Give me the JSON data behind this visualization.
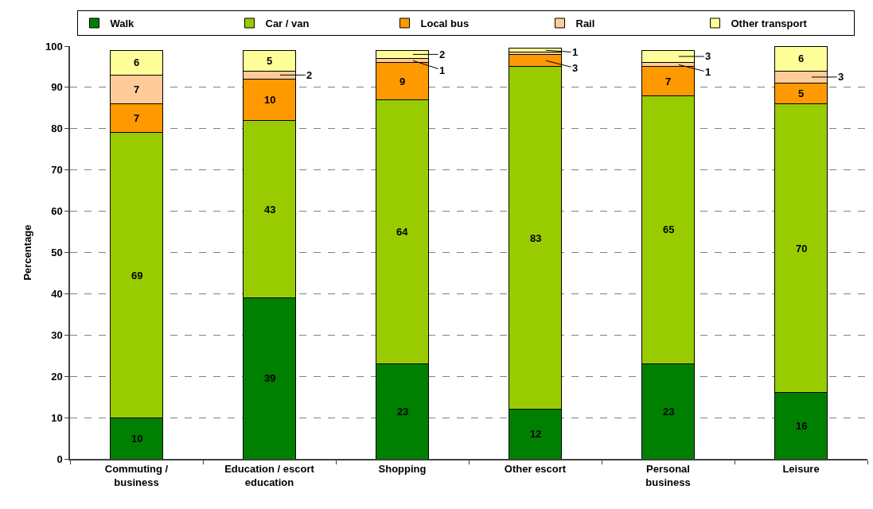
{
  "chart_data": {
    "type": "bar",
    "stacked": true,
    "ylabel": "Percentage",
    "categories": [
      "Commuting / business",
      "Education / escort education",
      "Shopping",
      "Other escort",
      "Personal business",
      "Leisure"
    ],
    "ylim": [
      0,
      100
    ],
    "yticks": [
      0,
      10,
      20,
      30,
      40,
      50,
      60,
      70,
      80,
      90,
      100
    ],
    "grid": "y",
    "legend": "top",
    "series": [
      {
        "name": "Walk",
        "color": "#008000",
        "values": [
          10,
          39,
          23,
          12,
          23,
          16
        ],
        "value_labels": [
          "10",
          "39",
          "23",
          "12",
          "23",
          "16"
        ]
      },
      {
        "name": "Car / van",
        "color": "#99cc00",
        "values": [
          69,
          43,
          64,
          83,
          65,
          70
        ],
        "value_labels": [
          "69",
          "43",
          "64",
          "83",
          "65",
          "70"
        ]
      },
      {
        "name": "Local bus",
        "color": "#ff9900",
        "values": [
          7,
          10,
          9,
          3,
          7,
          5
        ],
        "value_labels": [
          "7",
          "10",
          "9",
          "3",
          "7",
          "5"
        ]
      },
      {
        "name": "Rail",
        "color": "#ffcc99",
        "values": [
          7,
          2,
          1,
          0.5,
          1,
          3
        ],
        "value_labels": [
          "7",
          "2",
          "1",
          null,
          "1",
          "3"
        ]
      },
      {
        "name": "Other transport",
        "color": "#ffff99",
        "values": [
          6,
          5,
          2,
          1,
          3,
          6
        ],
        "value_labels": [
          "6",
          "5",
          "2",
          "1",
          "3",
          "6"
        ]
      }
    ]
  }
}
